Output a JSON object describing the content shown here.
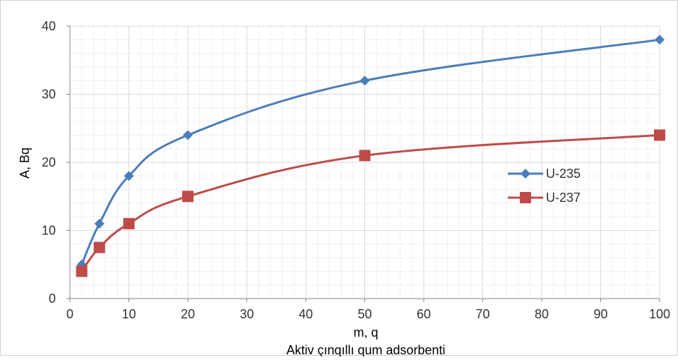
{
  "chart_data": {
    "type": "line",
    "title": "",
    "xlabel": "m, q",
    "xlabel_sub": "Aktiv çınqıllı qum adsorbenti",
    "ylabel": "A, Bq",
    "xlim": [
      0,
      100
    ],
    "ylim": [
      0,
      40
    ],
    "xticks": [
      0,
      10,
      20,
      30,
      40,
      50,
      60,
      70,
      80,
      90,
      100
    ],
    "yticks": [
      0,
      10,
      20,
      30,
      40
    ],
    "grid": true,
    "legend_position": "right",
    "x": [
      2,
      5,
      10,
      20,
      50,
      100
    ],
    "series": [
      {
        "name": "U-235",
        "values": [
          5,
          11,
          18,
          24,
          32,
          38
        ],
        "color": "#4a7ebb",
        "marker": "diamond"
      },
      {
        "name": "U-237",
        "values": [
          4,
          7.5,
          11,
          15,
          21,
          24
        ],
        "color": "#be4b48",
        "marker": "square"
      }
    ]
  }
}
